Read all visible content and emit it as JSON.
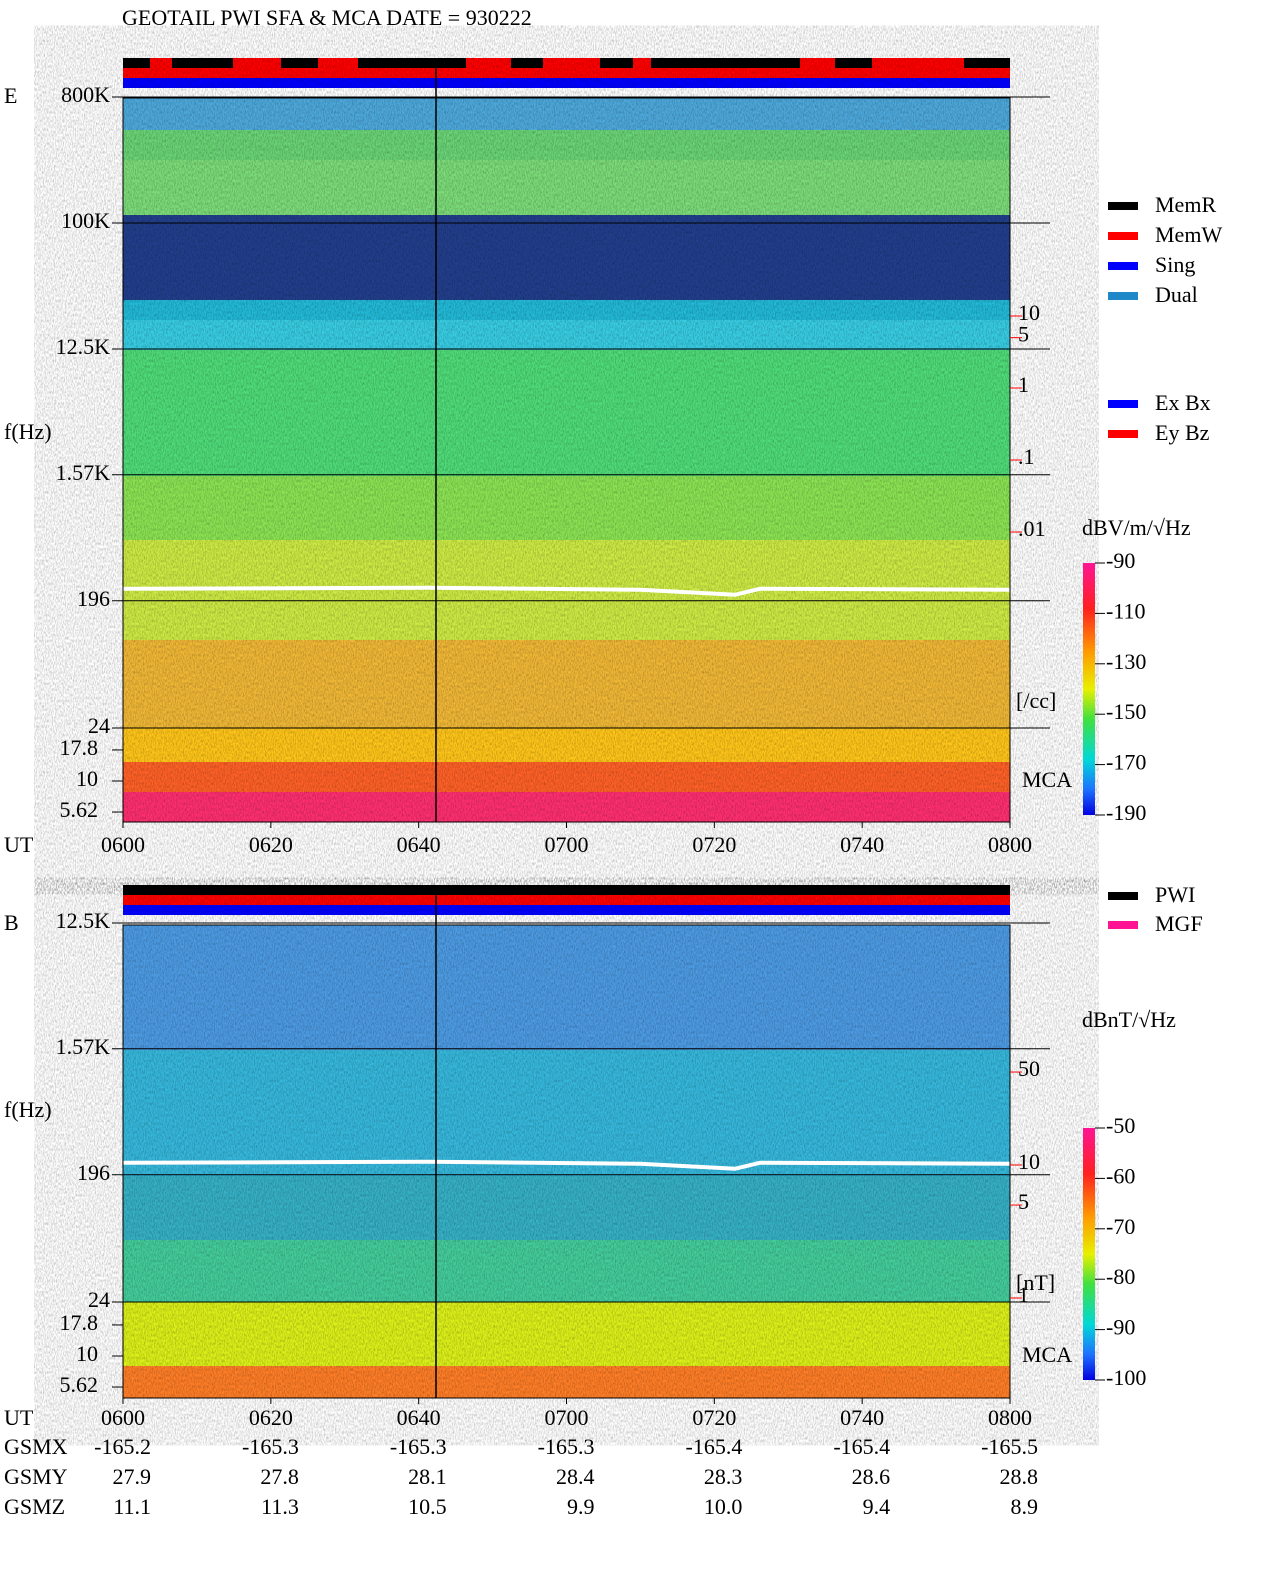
{
  "title": "GEOTAIL  PWI SFA & MCA   DATE = 930222",
  "x_axis": {
    "label": "UT",
    "ticks": [
      "0600",
      "0620",
      "0640",
      "0700",
      "0720",
      "0740",
      "0800"
    ]
  },
  "panels": [
    {
      "label": "E",
      "ylabel": "f(Hz)",
      "freq_ticks": [
        {
          "value": 800000,
          "label": "800K"
        },
        {
          "value": 100000,
          "label": "100K"
        },
        {
          "value": 12500,
          "label": "12.5K"
        },
        {
          "value": 1570,
          "label": "1.57K"
        },
        196,
        24
      ],
      "mca_ticks": [
        17.8,
        10,
        5.62
      ],
      "mca_label": "MCA",
      "right_ticks": [
        10,
        5,
        1,
        {
          "value": 0.1,
          "label": ".1"
        },
        {
          "value": 0.01,
          "label": ".01"
        }
      ],
      "right_unit": "[/cc]",
      "colorbar": {
        "unit": "dBV/m/√Hz",
        "lim": [
          -190,
          -90
        ],
        "ticks": [
          -90,
          -110,
          -130,
          -150,
          -170,
          -190
        ]
      },
      "legend": [
        {
          "name": "MemR",
          "color": "#000000"
        },
        {
          "name": "MemW",
          "color": "#ff0000"
        },
        {
          "name": "Sing",
          "color": "#0000ff"
        },
        {
          "name": "Dual",
          "color": "#1e88c8"
        }
      ],
      "legend2": [
        {
          "name": "Ex Bx",
          "color": "#0000ff"
        },
        {
          "name": "Ey Bz",
          "color": "#ff0000"
        }
      ]
    },
    {
      "label": "B",
      "ylabel": "f(Hz)",
      "freq_ticks": [
        {
          "value": 12500,
          "label": "12.5K"
        },
        {
          "value": 1570,
          "label": "1.57K"
        },
        196,
        24
      ],
      "mca_ticks": [
        17.8,
        10,
        5.62
      ],
      "mca_label": "MCA",
      "right_ticks": [
        50,
        10,
        5,
        1
      ],
      "right_unit": "[nT]",
      "colorbar": {
        "unit": "dBnT/√Hz",
        "lim": [
          -100,
          -50
        ],
        "ticks": [
          -50,
          -60,
          -70,
          -80,
          -90,
          -100
        ]
      },
      "legend": [
        {
          "name": "PWI",
          "color": "#000000"
        },
        {
          "name": "MGF",
          "color": "#ff1493"
        }
      ]
    }
  ],
  "orbit": [
    {
      "name": "GSMX",
      "values": [
        -165.2,
        -165.3,
        -165.3,
        -165.3,
        -165.4,
        -165.4,
        -165.5
      ]
    },
    {
      "name": "GSMY",
      "values": [
        27.9,
        27.8,
        28.1,
        28.4,
        28.3,
        28.6,
        28.8
      ]
    },
    {
      "name": "GSMZ",
      "values": [
        11.1,
        11.3,
        10.5,
        9.9,
        {
          "value": 10,
          "label": "10.0"
        },
        9.4,
        8.9
      ]
    }
  ]
}
